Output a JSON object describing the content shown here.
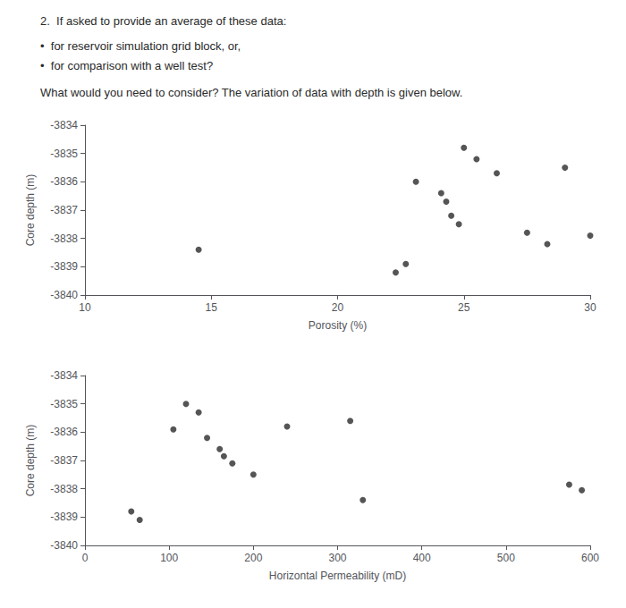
{
  "chart_data": [
    {
      "type": "scatter",
      "title": "2.  If asked to provide an average of these data:",
      "annotations": [
        "•  for reservoir simulation grid block, or,",
        "•  for comparison with a well test?",
        "What would you need to consider? The variation of data with depth is given below."
      ],
      "x": [
        14.5,
        22.3,
        22.7,
        23.1,
        24.1,
        24.3,
        24.5,
        24.8,
        25.0,
        25.5,
        26.3,
        27.5,
        28.3,
        29.0,
        30.0
      ],
      "values": [
        -3838.4,
        -3839.2,
        -3838.9,
        -3836.0,
        -3836.4,
        -3836.7,
        -3837.2,
        -3837.5,
        -3834.8,
        -3835.2,
        -3835.7,
        -3837.8,
        -3838.2,
        -3835.5,
        -3837.9
      ],
      "color": "#2a2a2a",
      "xlabel": "Porosity (%)",
      "ylabel": "Core depth (m)",
      "xlim": [
        10,
        30
      ],
      "xticks": [
        10,
        15,
        20,
        25,
        30
      ],
      "ylim": [
        -3840,
        -3834
      ],
      "yticks": [
        -3840,
        -3839,
        -3838,
        -3837,
        -3836,
        -3835,
        -3834
      ],
      "grid": false
    },
    {
      "type": "scatter",
      "x": [
        55,
        65,
        105,
        120,
        135,
        145,
        160,
        165,
        175,
        200,
        240,
        315,
        330,
        575,
        590
      ],
      "values": [
        -3838.8,
        -3839.1,
        -3835.9,
        -3835.0,
        -3835.3,
        -3836.2,
        -3836.6,
        -3836.85,
        -3837.1,
        -3837.5,
        -3835.8,
        -3835.6,
        -3838.4,
        -3837.85,
        -3838.05
      ],
      "color": "#2a2a2a",
      "xlabel": "Horizontal Permeability (mD)",
      "ylabel": "Core depth (m)",
      "xlim": [
        0,
        600
      ],
      "xticks": [
        0,
        100,
        200,
        300,
        400,
        500,
        600
      ],
      "ylim": [
        -3840,
        -3834
      ],
      "yticks": [
        -3840,
        -3839,
        -3838,
        -3837,
        -3836,
        -3835,
        -3834
      ],
      "grid": false
    }
  ]
}
